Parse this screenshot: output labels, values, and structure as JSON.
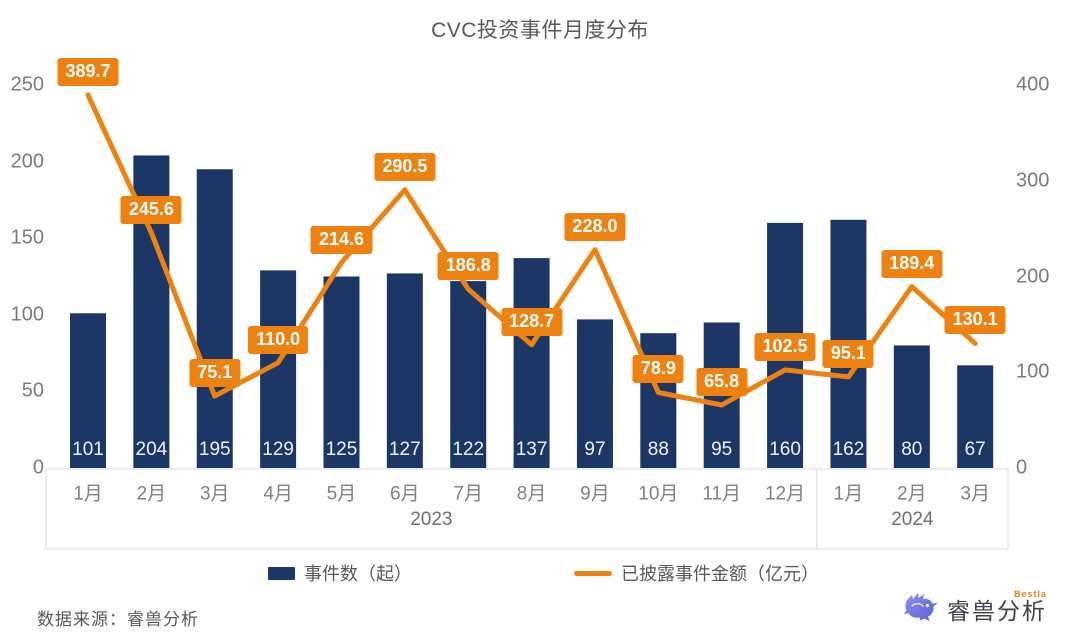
{
  "title": "CVC投资事件月度分布",
  "source_note": "数据来源：睿兽分析",
  "logo": {
    "brand": "睿兽分析",
    "tagline": "Bestla"
  },
  "legend": [
    {
      "label": "事件数（起）",
      "type": "bar"
    },
    {
      "label": "已披露事件金额（亿元）",
      "type": "line"
    }
  ],
  "colors": {
    "bar": "#1c3766",
    "line": "#ee8210",
    "label_chip_bg": "#ee8210",
    "label_chip_text": "#ffffff",
    "bar_value_text": "#eef1f7",
    "axis_text": "#7b7b7b",
    "month_text": "#818181",
    "axis_box_border": "#e1e1e1",
    "title_text": "#595959"
  },
  "chart_data": {
    "type": "bar+line combo",
    "title": "CVC投资事件月度分布",
    "categories": [
      "1月",
      "2月",
      "3月",
      "4月",
      "5月",
      "6月",
      "7月",
      "8月",
      "9月",
      "10月",
      "11月",
      "12月",
      "1月",
      "2月",
      "3月"
    ],
    "year_groups": [
      {
        "label": "2023",
        "span": 12
      },
      {
        "label": "2024",
        "span": 3
      }
    ],
    "series": [
      {
        "name": "事件数（起）",
        "type": "bar",
        "axis": "left",
        "values": [
          101,
          204,
          195,
          129,
          125,
          127,
          122,
          137,
          97,
          88,
          95,
          160,
          162,
          80,
          67
        ]
      },
      {
        "name": "已披露事件金额（亿元）",
        "type": "line",
        "axis": "right",
        "values": [
          389.7,
          245.6,
          75.1,
          110.0,
          214.6,
          290.5,
          186.8,
          128.7,
          228.0,
          78.9,
          65.8,
          102.5,
          95.1,
          189.4,
          130.1
        ],
        "label_decimals": 1
      }
    ],
    "left_axis": {
      "ticks": [
        0,
        50,
        100,
        150,
        200,
        250
      ],
      "max": 250
    },
    "right_axis": {
      "ticks": [
        0,
        100,
        200,
        300,
        400
      ],
      "max": 400
    },
    "grid": false,
    "legend_position": "bottom"
  }
}
